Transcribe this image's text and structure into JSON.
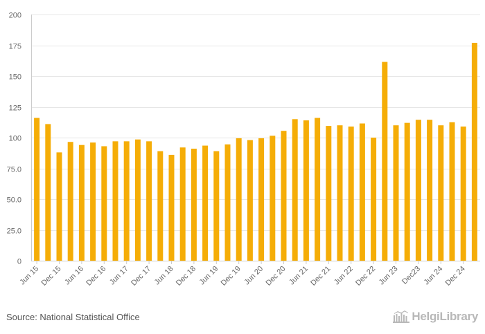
{
  "chart_data": {
    "type": "bar",
    "title": "",
    "xlabel": "",
    "ylabel": "",
    "ylim": [
      0,
      200
    ],
    "yticks": [
      "0",
      "25.0",
      "50.0",
      "75.0",
      "100",
      "125",
      "150",
      "175",
      "200"
    ],
    "ytick_values": [
      0,
      25,
      50,
      75,
      100,
      125,
      150,
      175,
      200
    ],
    "grid": true,
    "bar_color": "#f5ad07",
    "categories": [
      "Jun 15",
      "Sep 15",
      "Dec 15",
      "Mar 16",
      "Jun 16",
      "Sep 16",
      "Dec 16",
      "Mar 17",
      "Jun 17",
      "Sep 17",
      "Dec 17",
      "Mar 18",
      "Jun 18",
      "Sep 18",
      "Dec 18",
      "Mar 19",
      "Jun 19",
      "Sep 19",
      "Dec 19",
      "Mar 20",
      "Jun 20",
      "Sep 20",
      "Dec 20",
      "Mar 21",
      "Jun 21",
      "Sep 21",
      "Dec 21",
      "Mar 22",
      "Jun 22",
      "Sep 22",
      "Dec 22",
      "Mar 23",
      "Jun 23",
      "Sep 23",
      "Dec 23",
      "Mar 24",
      "Jun 24",
      "Sep 24",
      "Dec 24",
      "Mar 25"
    ],
    "values": [
      116,
      111,
      88,
      96.5,
      94,
      96,
      93,
      97,
      97,
      98.5,
      97,
      89,
      86,
      92,
      91,
      93.5,
      89,
      94.5,
      99.5,
      98,
      99.5,
      101.5,
      105.5,
      115,
      114,
      116,
      109.5,
      110,
      109,
      111.5,
      100,
      161.5,
      110,
      112,
      114.5,
      114.5,
      110,
      112.5,
      109,
      177
    ],
    "visible_xticks": [
      "Jun 15",
      "Dec 15",
      "Jun 16",
      "Dec 16",
      "Jun 17",
      "Dec 17",
      "Jun 18",
      "Dec 18",
      "Jun 19",
      "Dec 19",
      "Jun 20",
      "Dec 20",
      "Jun 21",
      "Dec 21",
      "Jun 22",
      "Dec 22",
      "Jun 23",
      "Dec23",
      "Jun 24",
      "Dec 24"
    ]
  },
  "footer": {
    "source": "Source: National Statistical Office",
    "brand": "HelgiLibrary"
  },
  "colors": {
    "grid": "#e6e6e6",
    "axis": "#cccccc",
    "tick_text": "#666666",
    "brand": "#b8b8b8"
  }
}
